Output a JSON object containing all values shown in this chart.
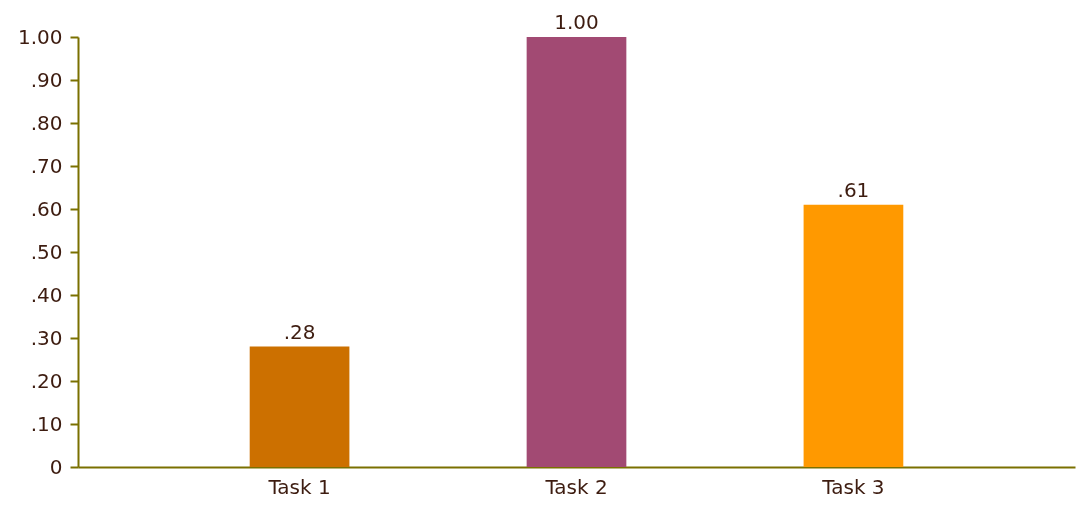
{
  "chart_data": {
    "type": "bar",
    "categories": [
      "Task 1",
      "Task 2",
      "Task 3"
    ],
    "values": [
      0.28,
      1.0,
      0.61
    ],
    "colors": [
      "#cc7000",
      "#a24a73",
      "#ff9900"
    ],
    "value_labels": [
      ".28",
      "1.00",
      ".61"
    ],
    "ylim": [
      0,
      1
    ],
    "yticks": [
      0,
      {
        "value": 0.1,
        "label": ".10"
      },
      {
        "value": 0.2,
        "label": ".20"
      },
      {
        "value": 0.3,
        "label": ".30"
      },
      {
        "value": 0.4,
        "label": ".40"
      },
      {
        "value": 0.5,
        "label": ".50"
      },
      {
        "value": 0.6,
        "label": ".60"
      },
      {
        "value": 0.7,
        "label": ".70"
      },
      {
        "value": 0.8,
        "label": ".80"
      },
      {
        "value": 0.9,
        "label": ".90"
      },
      {
        "value": 1,
        "label": "1.00"
      }
    ],
    "grid": false,
    "legend": false
  }
}
